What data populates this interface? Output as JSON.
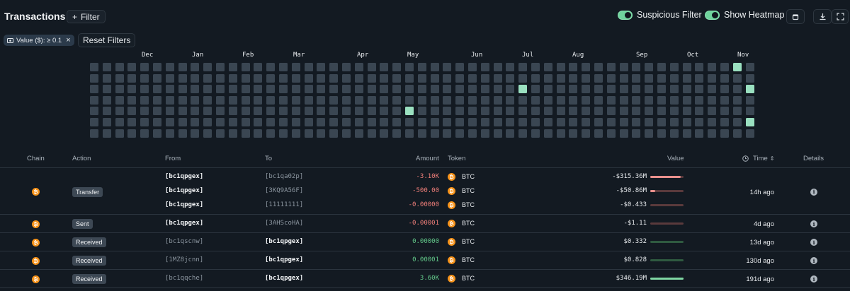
{
  "header": {
    "title": "Transactions",
    "filter_label": "Filter",
    "toggles": [
      {
        "label": "Suspicious Filter",
        "on": true
      },
      {
        "label": "Show Heatmap",
        "on": true
      }
    ],
    "icons": [
      "calendar-icon",
      "download-icon",
      "fullscreen-icon"
    ]
  },
  "filters": {
    "active_chip": "Value ($): ≥ 0.1",
    "reset_label": "Reset Filters"
  },
  "heatmap": {
    "months": [
      "Dec",
      "Jan",
      "Feb",
      "Mar",
      "Apr",
      "May",
      "Jun",
      "Jul",
      "Aug",
      "Sep",
      "Oct",
      "Nov"
    ],
    "weeks": 53,
    "days": 7,
    "highlighted": [
      [
        51,
        0
      ],
      [
        34,
        2
      ],
      [
        52,
        2
      ],
      [
        25,
        4
      ],
      [
        52,
        5
      ]
    ],
    "colors": {
      "empty": "#3a4652",
      "active": "#9ae0c0"
    }
  },
  "table": {
    "columns": {
      "chain": "Chain",
      "action": "Action",
      "from": "From",
      "to": "To",
      "amount": "Amount",
      "token": "Token",
      "value": "Value",
      "time": "Time",
      "details": "Details"
    },
    "rows": [
      {
        "action": "Transfer",
        "time": "14h ago",
        "lines": [
          {
            "from": "[bc1qpgex]",
            "to": "[bc1qa02p]",
            "amount": "-3.10K",
            "token": "BTC",
            "value": "-$315.36M",
            "bar": 0.92
          },
          {
            "from": "[bc1qpgex]",
            "to": "[3KQ9A56F]",
            "amount": "-500.00",
            "token": "BTC",
            "value": "-$50.86M",
            "bar": 0.15
          },
          {
            "from": "[bc1qpgex]",
            "to": "[11111111]",
            "amount": "-0.00000",
            "token": "BTC",
            "value": "-$0.433",
            "bar": 0.0
          }
        ]
      },
      {
        "action": "Sent",
        "time": "4d ago",
        "lines": [
          {
            "from": "[bc1qpgex]",
            "to": "[3AHScoHA]",
            "amount": "-0.00001",
            "token": "BTC",
            "value": "-$1.11",
            "bar": 0.0
          }
        ]
      },
      {
        "action": "Received",
        "time": "13d ago",
        "lines": [
          {
            "from": "[bc1qscnw]",
            "to": "[bc1qpgex]",
            "amount": "0.00000",
            "token": "BTC",
            "value": "$0.332",
            "bar": 0.0
          }
        ]
      },
      {
        "action": "Received",
        "time": "130d ago",
        "lines": [
          {
            "from": "[1MZ8jcnn]",
            "to": "[bc1qpgex]",
            "amount": "0.00001",
            "token": "BTC",
            "value": "$0.828",
            "bar": 0.0
          }
        ]
      },
      {
        "action": "Received",
        "time": "191d ago",
        "lines": [
          {
            "from": "[bc1qqche]",
            "to": "[bc1qpgex]",
            "amount": "3.60K",
            "token": "BTC",
            "value": "$346.19M",
            "bar": 1.0
          }
        ]
      }
    ]
  }
}
